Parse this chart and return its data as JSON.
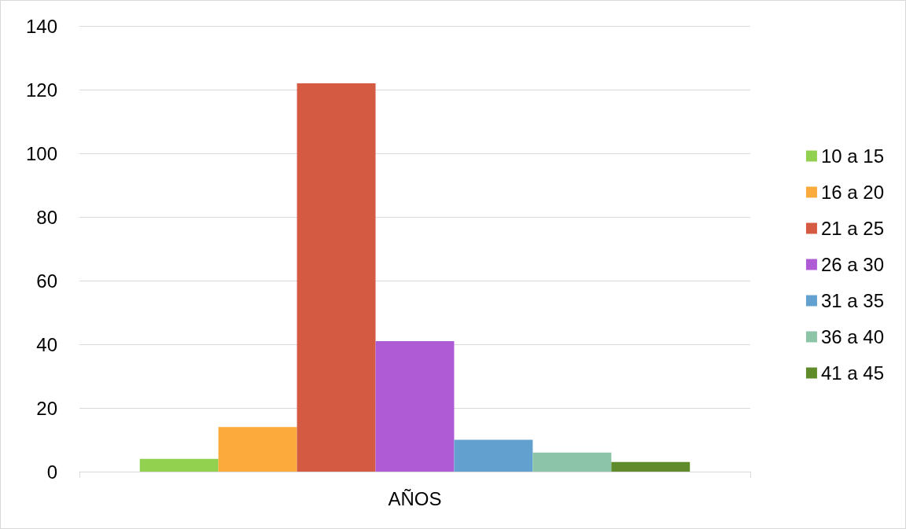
{
  "chart_data": {
    "type": "bar",
    "categories": [
      "AÑOS"
    ],
    "series": [
      {
        "name": "10 a 15",
        "color": "#92d050",
        "values": [
          4
        ]
      },
      {
        "name": "16 a 20",
        "color": "#fbaa3c",
        "values": [
          14
        ]
      },
      {
        "name": "21 a 25",
        "color": "#d55a42",
        "values": [
          122
        ]
      },
      {
        "name": "26 a 30",
        "color": "#b05bd6",
        "values": [
          41
        ]
      },
      {
        "name": "31 a 35",
        "color": "#62a0d0",
        "values": [
          10
        ]
      },
      {
        "name": "36 a 40",
        "color": "#8cc4a8",
        "values": [
          6
        ]
      },
      {
        "name": "41 a 45",
        "color": "#608b2b",
        "values": [
          3
        ]
      }
    ],
    "ylim": [
      0,
      140
    ],
    "yticks": [
      0,
      20,
      40,
      60,
      80,
      100,
      120,
      140
    ],
    "grid": "y",
    "legend": "right"
  }
}
